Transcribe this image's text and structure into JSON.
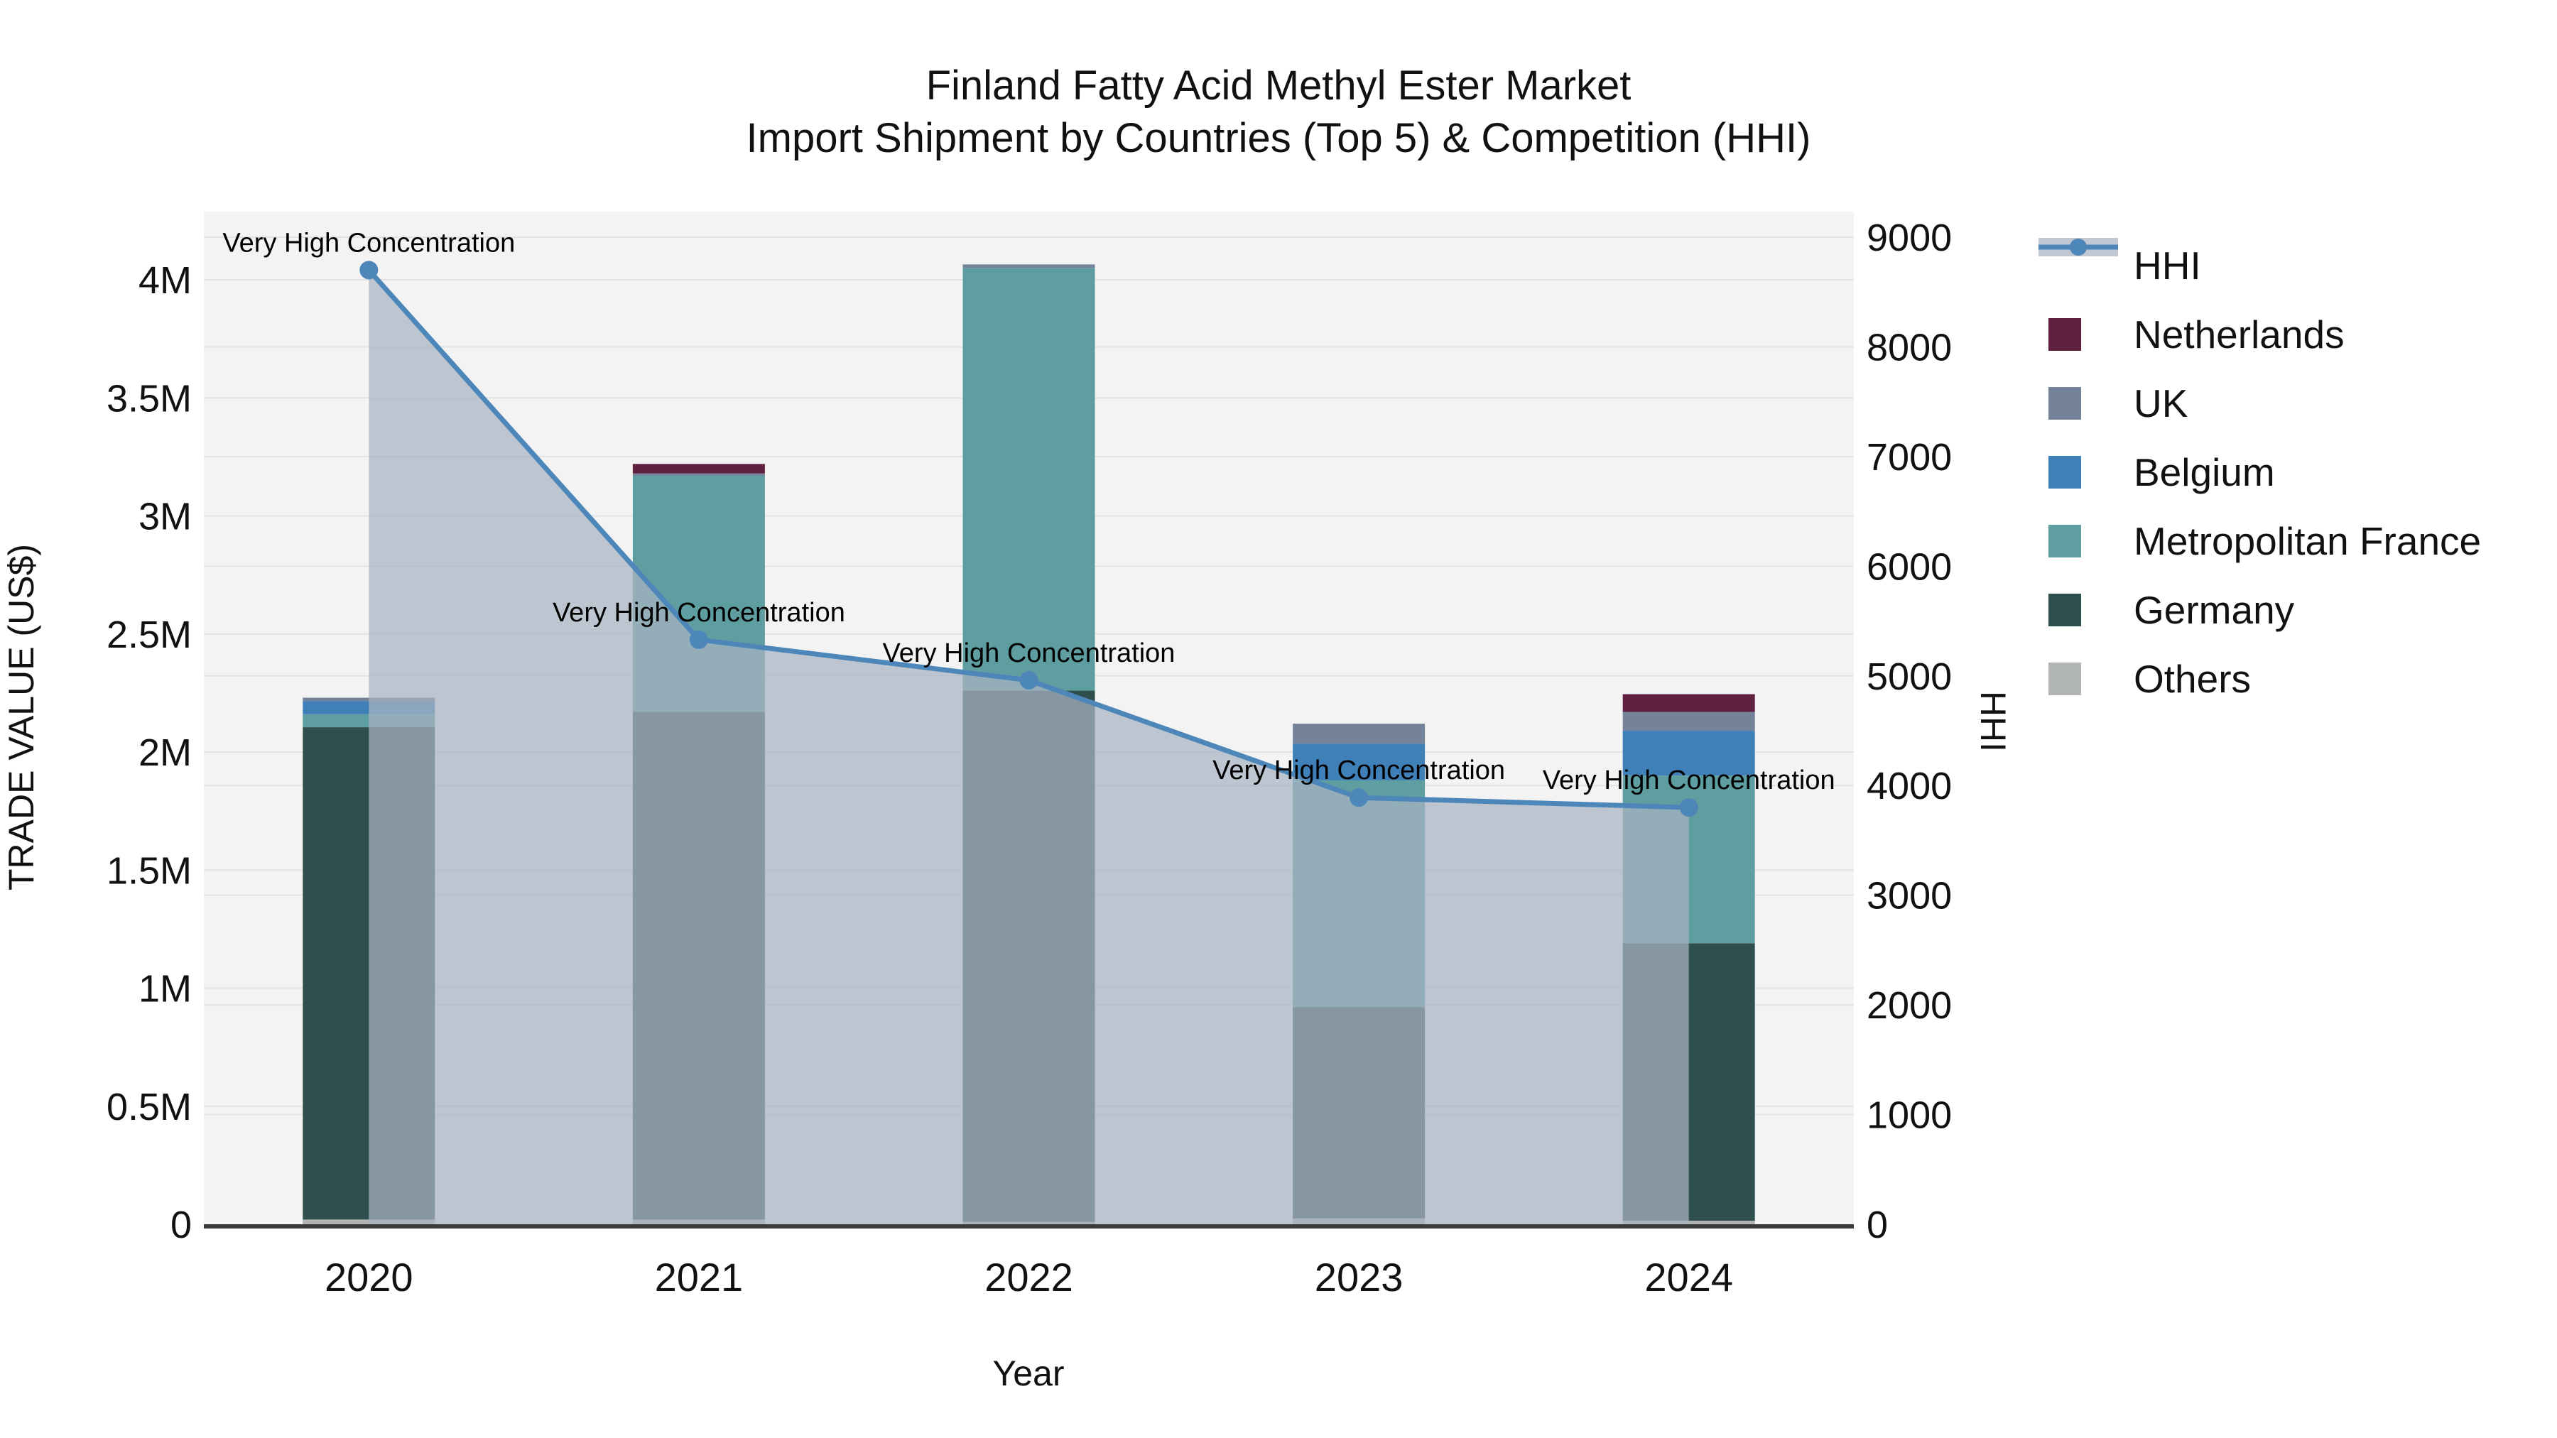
{
  "title": {
    "line1": "Finland Fatty Acid Methyl Ester Market",
    "line2": "Import Shipment by Countries (Top 5) & Competition (HHI)"
  },
  "axes": {
    "x_label": "Year",
    "y_left_label": "TRADE VALUE (US$)",
    "y_right_label": "HHI",
    "y_left_ticks": [
      "0",
      "0.5M",
      "1M",
      "1.5M",
      "2M",
      "2.5M",
      "3M",
      "3.5M",
      "4M"
    ],
    "y_left_tick_values": [
      0,
      500000,
      1000000,
      1500000,
      2000000,
      2500000,
      3000000,
      3500000,
      4000000
    ],
    "y_right_ticks": [
      "0",
      "1000",
      "2000",
      "3000",
      "4000",
      "5000",
      "6000",
      "7000",
      "8000",
      "9000"
    ],
    "y_right_tick_values": [
      0,
      1000,
      2000,
      3000,
      4000,
      5000,
      6000,
      7000,
      8000,
      9000
    ]
  },
  "chart_data": {
    "type": "bar",
    "subtype": "stacked-bars-with-line",
    "categories": [
      "2020",
      "2021",
      "2022",
      "2023",
      "2024"
    ],
    "bar_value_unit": "US$ trade value",
    "series": [
      {
        "name": "Others",
        "color": "#b0b4b4",
        "values": [
          20000,
          20000,
          10000,
          25000,
          15000
        ]
      },
      {
        "name": "Germany",
        "color": "#2f4f4f",
        "values": [
          2085000,
          2150000,
          2250000,
          895000,
          1175000
        ]
      },
      {
        "name": "Metropolitan France",
        "color": "#5f9ea0",
        "values": [
          55000,
          1000000,
          1790000,
          960000,
          710000
        ]
      },
      {
        "name": "Belgium",
        "color": "#4080b8",
        "values": [
          55000,
          0,
          0,
          155000,
          190000
        ]
      },
      {
        "name": "UK",
        "color": "#75839a",
        "values": [
          15000,
          10000,
          15000,
          85000,
          80000
        ]
      },
      {
        "name": "Netherlands",
        "color": "#5f1f3e",
        "values": [
          0,
          40000,
          0,
          0,
          75000
        ]
      }
    ],
    "bar_totals": [
      2230000,
      3220000,
      4065000,
      2120000,
      2245000
    ],
    "line_series": {
      "name": "HHI",
      "axis": "right",
      "color": "#4d87ba",
      "area_fill_color": "rgba(168,179,194,0.72)",
      "values": [
        8700,
        5330,
        4960,
        3890,
        3800
      ]
    },
    "annotations": [
      {
        "category": "2020",
        "text": "Very High Concentration"
      },
      {
        "category": "2021",
        "text": "Very High Concentration"
      },
      {
        "category": "2022",
        "text": "Very High Concentration"
      },
      {
        "category": "2023",
        "text": "Very High Concentration"
      },
      {
        "category": "2024",
        "text": "Very High Concentration"
      }
    ],
    "y_left_range": [
      0,
      4290000
    ],
    "y_right_range": [
      0,
      9280
    ],
    "grid": true,
    "plot_background": "#f3f3f3",
    "gridline_color": "#e3e3e3",
    "axis_line_color": "#3a3a3a",
    "legend_position": "right"
  },
  "legend": {
    "items": [
      {
        "label": "HHI",
        "type": "line",
        "color": "#4d87ba",
        "band_color": "rgba(168,179,194,0.72)"
      },
      {
        "label": "Netherlands",
        "type": "patch",
        "color": "#5f1f3e"
      },
      {
        "label": "UK",
        "type": "patch",
        "color": "#75839a"
      },
      {
        "label": "Belgium",
        "type": "patch",
        "color": "#4080b8"
      },
      {
        "label": "Metropolitan France",
        "type": "patch",
        "color": "#5f9ea0"
      },
      {
        "label": "Germany",
        "type": "patch",
        "color": "#2f4f4f"
      },
      {
        "label": "Others",
        "type": "patch",
        "color": "#b0b4b4"
      }
    ]
  }
}
